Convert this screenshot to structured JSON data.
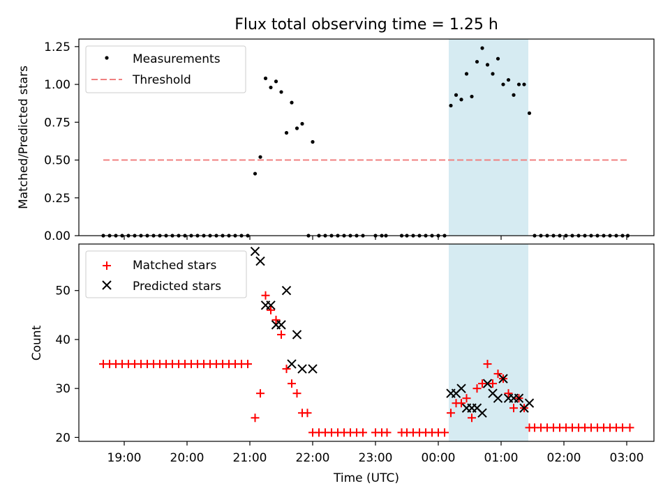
{
  "title": "Flux total observing time = 1.25 h",
  "chart_data": [
    {
      "type": "scatter",
      "panel": "top",
      "ylabel": "Matched/Predicted stars",
      "xlabel": "",
      "ylim": [
        0,
        1.3
      ],
      "yticks": [
        0.0,
        0.25,
        0.5,
        0.75,
        1.0,
        1.25
      ],
      "ytick_labels": [
        "0.00",
        "0.25",
        "0.50",
        "0.75",
        "1.00",
        "1.25"
      ],
      "legend": {
        "placement": "top-left",
        "entries": [
          "Measurements",
          "Threshold"
        ]
      },
      "threshold": {
        "name": "Threshold",
        "value": 0.5,
        "x_start": "18:40",
        "x_end": "03:00",
        "color": "#f08080",
        "style": "dashed"
      },
      "highlight": {
        "x_start": "00:10",
        "x_end": "01:26",
        "color": "#add8e6"
      },
      "series": [
        {
          "name": "Measurements",
          "color": "#000000",
          "marker": "dot",
          "points": [
            [
              "18:40",
              0
            ],
            [
              "18:46",
              0
            ],
            [
              "18:52",
              0
            ],
            [
              "18:58",
              0
            ],
            [
              "19:04",
              0
            ],
            [
              "19:10",
              0
            ],
            [
              "19:16",
              0
            ],
            [
              "19:22",
              0
            ],
            [
              "19:28",
              0
            ],
            [
              "19:34",
              0
            ],
            [
              "19:40",
              0
            ],
            [
              "19:46",
              0
            ],
            [
              "19:52",
              0
            ],
            [
              "19:58",
              0
            ],
            [
              "20:04",
              0
            ],
            [
              "20:10",
              0
            ],
            [
              "20:16",
              0
            ],
            [
              "20:22",
              0
            ],
            [
              "20:28",
              0
            ],
            [
              "20:34",
              0
            ],
            [
              "20:40",
              0
            ],
            [
              "20:46",
              0
            ],
            [
              "20:52",
              0
            ],
            [
              "20:58",
              0
            ],
            [
              "21:05",
              0.41
            ],
            [
              "21:10",
              0.52
            ],
            [
              "21:15",
              1.04
            ],
            [
              "21:20",
              0.98
            ],
            [
              "21:25",
              1.02
            ],
            [
              "21:30",
              0.95
            ],
            [
              "21:35",
              0.68
            ],
            [
              "21:40",
              0.88
            ],
            [
              "21:45",
              0.71
            ],
            [
              "21:50",
              0.74
            ],
            [
              "22:00",
              0.62
            ],
            [
              "21:56",
              0
            ],
            [
              "22:06",
              0
            ],
            [
              "22:12",
              0
            ],
            [
              "22:18",
              0
            ],
            [
              "22:24",
              0
            ],
            [
              "22:30",
              0
            ],
            [
              "22:36",
              0
            ],
            [
              "22:42",
              0
            ],
            [
              "22:48",
              0
            ],
            [
              "23:00",
              0
            ],
            [
              "23:06",
              0
            ],
            [
              "23:10",
              0
            ],
            [
              "23:25",
              0
            ],
            [
              "23:30",
              0
            ],
            [
              "23:36",
              0
            ],
            [
              "23:42",
              0
            ],
            [
              "23:48",
              0
            ],
            [
              "23:54",
              0
            ],
            [
              "00:00",
              0
            ],
            [
              "00:06",
              0
            ],
            [
              "00:12",
              0.86
            ],
            [
              "00:17",
              0.93
            ],
            [
              "00:22",
              0.9
            ],
            [
              "00:27",
              1.07
            ],
            [
              "00:32",
              0.92
            ],
            [
              "00:37",
              1.15
            ],
            [
              "00:42",
              1.24
            ],
            [
              "00:47",
              1.13
            ],
            [
              "00:52",
              1.07
            ],
            [
              "00:57",
              1.17
            ],
            [
              "01:02",
              1.0
            ],
            [
              "01:07",
              1.03
            ],
            [
              "01:12",
              0.93
            ],
            [
              "01:17",
              1.0
            ],
            [
              "01:22",
              1.0
            ],
            [
              "01:27",
              0.81
            ],
            [
              "01:32",
              0
            ],
            [
              "01:38",
              0
            ],
            [
              "01:44",
              0
            ],
            [
              "01:50",
              0
            ],
            [
              "01:56",
              0
            ],
            [
              "02:02",
              0
            ],
            [
              "02:08",
              0
            ],
            [
              "02:14",
              0
            ],
            [
              "02:20",
              0
            ],
            [
              "02:26",
              0
            ],
            [
              "02:32",
              0
            ],
            [
              "02:38",
              0
            ],
            [
              "02:44",
              0
            ],
            [
              "02:50",
              0
            ],
            [
              "02:56",
              0
            ],
            [
              "03:01",
              0
            ]
          ]
        }
      ]
    },
    {
      "type": "scatter",
      "panel": "bottom",
      "ylabel": "Count",
      "xlabel": "Time (UTC)",
      "ylim": [
        19.2,
        59.5
      ],
      "yticks": [
        20,
        30,
        40,
        50
      ],
      "ytick_labels": [
        "20",
        "30",
        "40",
        "50"
      ],
      "xticks": [
        "19:00",
        "20:00",
        "21:00",
        "22:00",
        "23:00",
        "00:00",
        "01:00",
        "02:00",
        "03:00"
      ],
      "legend": {
        "placement": "top-left",
        "entries": [
          "Matched stars",
          "Predicted stars"
        ]
      },
      "highlight": {
        "x_start": "00:10",
        "x_end": "01:26",
        "color": "#add8e6"
      },
      "series": [
        {
          "name": "Matched stars",
          "color": "#ff0000",
          "marker": "plus",
          "points": [
            [
              "18:40",
              35
            ],
            [
              "18:46",
              35
            ],
            [
              "18:52",
              35
            ],
            [
              "18:58",
              35
            ],
            [
              "19:04",
              35
            ],
            [
              "19:10",
              35
            ],
            [
              "19:16",
              35
            ],
            [
              "19:22",
              35
            ],
            [
              "19:28",
              35
            ],
            [
              "19:34",
              35
            ],
            [
              "19:40",
              35
            ],
            [
              "19:46",
              35
            ],
            [
              "19:52",
              35
            ],
            [
              "19:58",
              35
            ],
            [
              "20:04",
              35
            ],
            [
              "20:10",
              35
            ],
            [
              "20:16",
              35
            ],
            [
              "20:22",
              35
            ],
            [
              "20:28",
              35
            ],
            [
              "20:34",
              35
            ],
            [
              "20:40",
              35
            ],
            [
              "20:46",
              35
            ],
            [
              "20:52",
              35
            ],
            [
              "20:58",
              35
            ],
            [
              "21:05",
              24
            ],
            [
              "21:10",
              29
            ],
            [
              "21:15",
              49
            ],
            [
              "21:20",
              46
            ],
            [
              "21:25",
              44
            ],
            [
              "21:30",
              41
            ],
            [
              "21:35",
              34
            ],
            [
              "21:40",
              31
            ],
            [
              "21:45",
              29
            ],
            [
              "21:50",
              25
            ],
            [
              "21:55",
              25
            ],
            [
              "22:00",
              21
            ],
            [
              "22:06",
              21
            ],
            [
              "22:12",
              21
            ],
            [
              "22:18",
              21
            ],
            [
              "22:24",
              21
            ],
            [
              "22:30",
              21
            ],
            [
              "22:36",
              21
            ],
            [
              "22:42",
              21
            ],
            [
              "22:48",
              21
            ],
            [
              "23:00",
              21
            ],
            [
              "23:06",
              21
            ],
            [
              "23:11",
              21
            ],
            [
              "23:25",
              21
            ],
            [
              "23:30",
              21
            ],
            [
              "23:36",
              21
            ],
            [
              "23:42",
              21
            ],
            [
              "23:48",
              21
            ],
            [
              "23:54",
              21
            ],
            [
              "00:00",
              21
            ],
            [
              "00:06",
              21
            ],
            [
              "00:12",
              25
            ],
            [
              "00:17",
              27
            ],
            [
              "00:22",
              27
            ],
            [
              "00:27",
              28
            ],
            [
              "00:32",
              24
            ],
            [
              "00:37",
              30
            ],
            [
              "00:42",
              31
            ],
            [
              "00:47",
              35
            ],
            [
              "00:52",
              31
            ],
            [
              "00:57",
              33
            ],
            [
              "01:02",
              32
            ],
            [
              "01:07",
              29
            ],
            [
              "01:12",
              26
            ],
            [
              "01:17",
              28
            ],
            [
              "01:22",
              26
            ],
            [
              "01:27",
              22
            ],
            [
              "01:32",
              22
            ],
            [
              "01:38",
              22
            ],
            [
              "01:44",
              22
            ],
            [
              "01:50",
              22
            ],
            [
              "01:56",
              22
            ],
            [
              "02:02",
              22
            ],
            [
              "02:08",
              22
            ],
            [
              "02:14",
              22
            ],
            [
              "02:20",
              22
            ],
            [
              "02:26",
              22
            ],
            [
              "02:32",
              22
            ],
            [
              "02:38",
              22
            ],
            [
              "02:44",
              22
            ],
            [
              "02:50",
              22
            ],
            [
              "02:56",
              22
            ],
            [
              "03:03",
              22
            ]
          ]
        },
        {
          "name": "Predicted stars",
          "color": "#000000",
          "marker": "x",
          "points": [
            [
              "21:05",
              58
            ],
            [
              "21:10",
              56
            ],
            [
              "21:15",
              47
            ],
            [
              "21:20",
              47
            ],
            [
              "21:25",
              43
            ],
            [
              "21:30",
              43
            ],
            [
              "21:35",
              50
            ],
            [
              "21:40",
              35
            ],
            [
              "21:45",
              41
            ],
            [
              "21:50",
              34
            ],
            [
              "22:00",
              34
            ],
            [
              "00:12",
              29
            ],
            [
              "00:17",
              29
            ],
            [
              "00:22",
              30
            ],
            [
              "00:27",
              26
            ],
            [
              "00:32",
              26
            ],
            [
              "00:37",
              26
            ],
            [
              "00:42",
              25
            ],
            [
              "00:47",
              31
            ],
            [
              "00:52",
              29
            ],
            [
              "00:57",
              28
            ],
            [
              "01:02",
              32
            ],
            [
              "01:07",
              28
            ],
            [
              "01:12",
              28
            ],
            [
              "01:17",
              28
            ],
            [
              "01:22",
              26
            ],
            [
              "01:27",
              27
            ]
          ]
        }
      ]
    }
  ]
}
